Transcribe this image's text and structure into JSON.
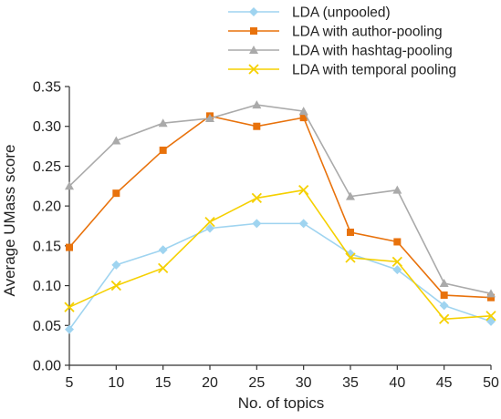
{
  "chart_data": {
    "type": "line",
    "xlabel": "No. of topics",
    "ylabel": "Average UMass score",
    "x": [
      5,
      10,
      15,
      20,
      25,
      30,
      35,
      40,
      45,
      50
    ],
    "xlim": [
      5,
      50
    ],
    "ylim": [
      0,
      0.35
    ],
    "x_ticks": [
      "5",
      "10",
      "15",
      "20",
      "25",
      "30",
      "35",
      "40",
      "45",
      "50"
    ],
    "y_ticks": [
      "0.00",
      "0.05",
      "0.10",
      "0.15",
      "0.20",
      "0.25",
      "0.30",
      "0.35"
    ],
    "grid": false,
    "legend_position": "top-right",
    "series": [
      {
        "name": "LDA (unpooled)",
        "color": "#9fd4f0",
        "marker": "diamond",
        "values": [
          0.045,
          0.126,
          0.145,
          0.172,
          0.178,
          0.178,
          0.14,
          0.12,
          0.075,
          0.055
        ]
      },
      {
        "name": "LDA with author-pooling",
        "color": "#e8720c",
        "marker": "square",
        "values": [
          0.148,
          0.216,
          0.27,
          0.313,
          0.3,
          0.311,
          0.167,
          0.155,
          0.088,
          0.085
        ]
      },
      {
        "name": "LDA with hashtag-pooling",
        "color": "#aaaaaa",
        "marker": "triangle",
        "values": [
          0.225,
          0.282,
          0.304,
          0.31,
          0.327,
          0.319,
          0.212,
          0.22,
          0.103,
          0.09
        ]
      },
      {
        "name": "LDA with temporal pooling",
        "color": "#f5d000",
        "marker": "x",
        "values": [
          0.073,
          0.1,
          0.122,
          0.18,
          0.21,
          0.22,
          0.135,
          0.13,
          0.058,
          0.062
        ]
      }
    ]
  }
}
